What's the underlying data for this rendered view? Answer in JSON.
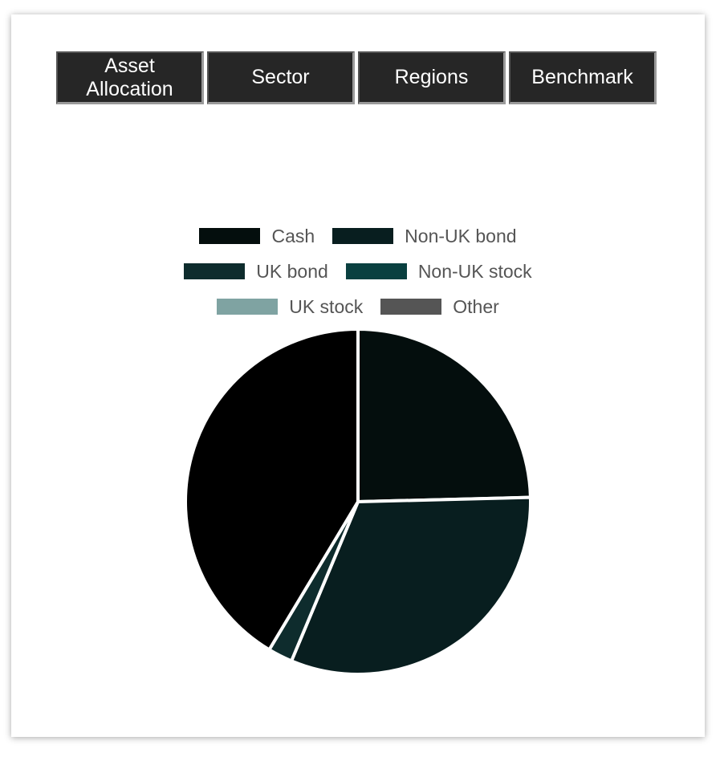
{
  "tabs": [
    {
      "label": "Asset Allocation"
    },
    {
      "label": "Sector"
    },
    {
      "label": "Regions"
    },
    {
      "label": "Benchmark"
    }
  ],
  "chart_data": {
    "type": "pie",
    "title": "",
    "legend_position": "top",
    "categories": [
      "Cash",
      "Non-UK bond",
      "UK bond",
      "Non-UK stock",
      "UK stock",
      "Other"
    ],
    "values": [
      24.6,
      31.7,
      2.3,
      0,
      0,
      41.4
    ],
    "colors": [
      "#040e0d",
      "#081e1f",
      "#0e2c2d",
      "#0a4040",
      "#7fa3a2",
      "#555555"
    ],
    "start_angle_deg": 0,
    "slice_fills": [
      "#040e0d",
      "#081e1f",
      "#0e2c2d",
      "#0a4040",
      "#7fa3a2",
      "#000000"
    ]
  }
}
